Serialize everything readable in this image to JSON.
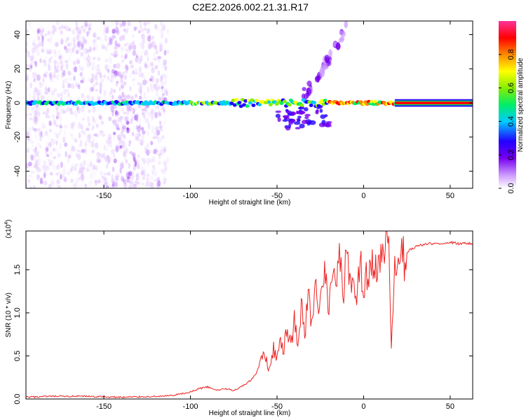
{
  "title": "C2E2.2026.002.21.31.R17",
  "chart_data": [
    {
      "type": "heatmap",
      "title": "C2E2.2026.002.21.31.R17",
      "xlabel": "Height of straight line (km)",
      "ylabel": "Frequency (Hz)",
      "xlim": [
        -195,
        63
      ],
      "ylim": [
        -50,
        48
      ],
      "xticks": [
        -150,
        -100,
        -50,
        0,
        50
      ],
      "yticks": [
        -40,
        -20,
        0,
        20,
        40
      ],
      "colorbar": {
        "label": "Normalized spectral amplitude",
        "range": [
          0.0,
          1.0
        ],
        "ticks": [
          0.0,
          0.2,
          0.4,
          0.6,
          0.8
        ],
        "colormap": [
          "#ffffff",
          "#cc99ff",
          "#7700ee",
          "#2200ff",
          "#00ccff",
          "#00ee66",
          "#88ee00",
          "#ffff00",
          "#ff8800",
          "#ff0000",
          "#ff3399"
        ]
      },
      "features": [
        {
          "name": "carrier line",
          "x_range": [
            -195,
            63
          ],
          "frequency": 0,
          "amplitude": "high"
        },
        {
          "name": "scatter noise",
          "x_range": [
            -195,
            -113
          ],
          "frequency_range": [
            -50,
            48
          ],
          "amplitude": "low"
        },
        {
          "name": "upper branch",
          "x_range": [
            -35,
            -10
          ],
          "frequency_range": [
            5,
            45
          ],
          "amplitude": "low"
        },
        {
          "name": "lower branch",
          "x_range": [
            -50,
            -20
          ],
          "frequency_range": [
            -15,
            -2
          ],
          "amplitude": "medium"
        }
      ]
    },
    {
      "type": "line",
      "xlabel": "Height of straight line (km)",
      "ylabel": "SNR (10 * v/v)",
      "y_multiplier": "(x10",
      "y_multiplier_exp": "4",
      "y_multiplier_close": ")",
      "xlim": [
        -195,
        63
      ],
      "ylim": [
        0,
        1.95
      ],
      "xticks": [
        -150,
        -100,
        -50,
        0,
        50
      ],
      "yticks": [
        0.0,
        0.5,
        1.0,
        1.5
      ],
      "ytick_labels": [
        "0.0",
        "0.5",
        "1.0",
        "1.5"
      ],
      "color": "#ee2222",
      "series": [
        {
          "name": "SNR",
          "x": [
            -195,
            -180,
            -160,
            -140,
            -120,
            -110,
            -100,
            -95,
            -90,
            -85,
            -80,
            -75,
            -70,
            -65,
            -62,
            -58,
            -55,
            -52,
            -50,
            -48,
            -46,
            -44,
            -42,
            -40,
            -38,
            -36,
            -34,
            -32,
            -30,
            -28,
            -26,
            -24,
            -22,
            -20,
            -18,
            -16,
            -14,
            -12,
            -10,
            -8,
            -6,
            -4,
            -2,
            0,
            2,
            4,
            6,
            8,
            10,
            12,
            14,
            16,
            18,
            20,
            22,
            25,
            28,
            32,
            36,
            40,
            45,
            50,
            55,
            60,
            63
          ],
          "y": [
            0.02,
            0.03,
            0.03,
            0.02,
            0.03,
            0.04,
            0.08,
            0.12,
            0.14,
            0.1,
            0.12,
            0.1,
            0.15,
            0.22,
            0.3,
            0.5,
            0.38,
            0.6,
            0.45,
            0.68,
            0.55,
            0.85,
            0.6,
            0.9,
            0.7,
            1.05,
            0.75,
            1.25,
            0.85,
            1.4,
            0.9,
            1.2,
            1.5,
            1.0,
            1.6,
            1.3,
            1.92,
            1.15,
            1.7,
            1.3,
            1.45,
            1.2,
            1.6,
            1.35,
            1.5,
            1.4,
            1.6,
            1.45,
            1.55,
            1.75,
            1.97,
            0.55,
            1.45,
            1.55,
            1.6,
            1.7,
            1.75,
            1.78,
            1.8,
            1.8,
            1.81,
            1.82,
            1.8,
            1.81,
            1.8
          ]
        }
      ]
    }
  ]
}
